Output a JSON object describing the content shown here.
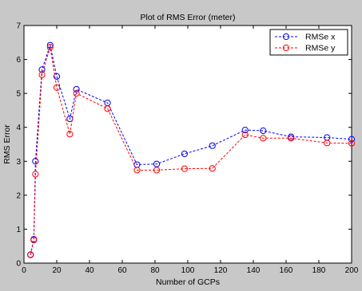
{
  "chart_data": {
    "type": "line",
    "title": "Plot of RMS Error (meter)",
    "xlabel": "Number of GCPs",
    "ylabel": "RMS Error",
    "xlim": [
      0,
      200
    ],
    "ylim": [
      0,
      7
    ],
    "xticks": [
      0,
      20,
      40,
      60,
      80,
      100,
      120,
      140,
      160,
      180,
      200
    ],
    "yticks": [
      0,
      1,
      2,
      3,
      4,
      5,
      6,
      7
    ],
    "grid": false,
    "legend_position": "top-right",
    "background_color": "#c8c8c8",
    "plot_background_color": "#ffffff",
    "series": [
      {
        "name": "RMSe x",
        "color": "#0000ff",
        "line_style": "dashed",
        "marker": "circle",
        "x": [
          4,
          6,
          7,
          11,
          16,
          20,
          28,
          32,
          51,
          69,
          81,
          98,
          115,
          135,
          146,
          163,
          185,
          200
        ],
        "y": [
          0.25,
          0.7,
          3.0,
          5.7,
          6.42,
          5.5,
          4.25,
          5.12,
          4.72,
          2.9,
          2.92,
          3.22,
          3.46,
          3.92,
          3.9,
          3.72,
          3.7,
          3.65
        ]
      },
      {
        "name": "RMSe y",
        "color": "#ff0000",
        "line_style": "dashed",
        "marker": "circle",
        "x": [
          4,
          6,
          7,
          11,
          16,
          20,
          28,
          32,
          51,
          69,
          81,
          98,
          115,
          135,
          146,
          163,
          185,
          200
        ],
        "y": [
          0.24,
          0.68,
          2.62,
          5.55,
          6.36,
          5.17,
          3.8,
          5.0,
          4.55,
          2.74,
          2.74,
          2.78,
          2.79,
          3.78,
          3.68,
          3.68,
          3.54,
          3.53
        ]
      }
    ]
  }
}
